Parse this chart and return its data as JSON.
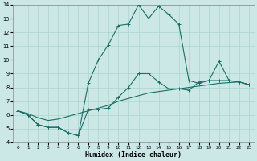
{
  "title": "",
  "xlabel": "Humidex (Indice chaleur)",
  "xlim": [
    -0.5,
    23.5
  ],
  "ylim": [
    4,
    14
  ],
  "xticks": [
    0,
    1,
    2,
    3,
    4,
    5,
    6,
    7,
    8,
    9,
    10,
    11,
    12,
    13,
    14,
    15,
    16,
    17,
    18,
    19,
    20,
    21,
    22,
    23
  ],
  "yticks": [
    4,
    5,
    6,
    7,
    8,
    9,
    10,
    11,
    12,
    13,
    14
  ],
  "bg_color": "#cce8e6",
  "grid_color": "#aad4d0",
  "line_color": "#1a6e64",
  "curve1_y": [
    6.3,
    6.0,
    5.3,
    5.1,
    5.1,
    4.7,
    4.5,
    8.3,
    10.0,
    11.1,
    12.5,
    12.6,
    14.0,
    13.0,
    13.9,
    13.3,
    12.6,
    8.5,
    8.3,
    8.5,
    9.9,
    8.5,
    8.4,
    8.2
  ],
  "curve2_y": [
    6.3,
    6.0,
    5.3,
    5.1,
    5.1,
    4.7,
    4.5,
    6.4,
    6.4,
    6.5,
    7.3,
    8.0,
    9.0,
    9.0,
    8.4,
    7.9,
    7.9,
    7.8,
    8.4,
    8.5,
    8.5,
    8.5,
    8.4,
    8.2
  ],
  "curve3_y": [
    6.3,
    6.1,
    5.8,
    5.6,
    5.7,
    5.9,
    6.1,
    6.3,
    6.5,
    6.7,
    7.0,
    7.2,
    7.4,
    7.6,
    7.7,
    7.8,
    7.9,
    8.0,
    8.1,
    8.2,
    8.3,
    8.35,
    8.4,
    8.2
  ],
  "xlabel_fontsize": 6,
  "tick_fontsize": 4.5,
  "lw": 0.8
}
